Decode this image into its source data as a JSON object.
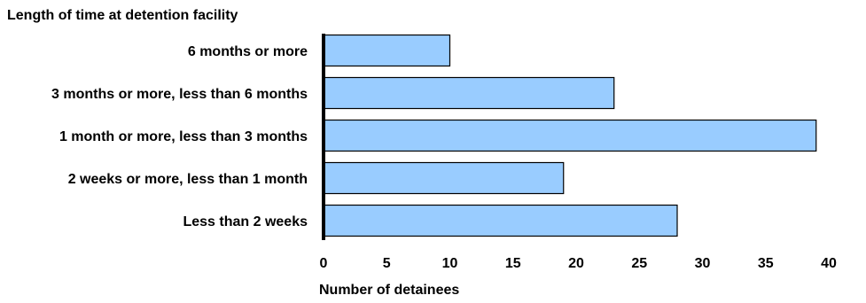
{
  "chart_data": {
    "type": "bar",
    "orientation": "horizontal",
    "title": "Length of time at detention facility",
    "xlabel": "Number of detainees",
    "ylabel": "",
    "categories": [
      "6 months or more",
      "3 months or more, less than 6 months",
      "1 month or more, less than 3 months",
      "2 weeks or more, less than 1 month",
      "Less than 2 weeks"
    ],
    "values": [
      10,
      23,
      39,
      19,
      28
    ],
    "xlim": [
      0,
      40
    ],
    "xticks": [
      "0",
      "5",
      "10",
      "15",
      "20",
      "25",
      "30",
      "35",
      "40"
    ],
    "grid": false,
    "legend": "none",
    "bar_color": "#99ccff",
    "bar_edge_color": "#000000"
  }
}
